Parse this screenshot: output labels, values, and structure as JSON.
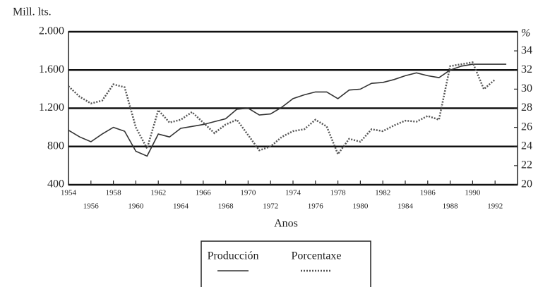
{
  "chart_data": {
    "type": "line",
    "y_label": "Mill. lts.",
    "y2_label": "%",
    "x_label": "Anos",
    "x": [
      1954,
      1955,
      1956,
      1957,
      1958,
      1959,
      1960,
      1961,
      1962,
      1963,
      1964,
      1965,
      1966,
      1967,
      1968,
      1969,
      1970,
      1971,
      1972,
      1973,
      1974,
      1975,
      1976,
      1977,
      1978,
      1979,
      1980,
      1981,
      1982,
      1983,
      1984,
      1985,
      1986,
      1987,
      1988,
      1989,
      1990,
      1991,
      1992,
      1993
    ],
    "xlim": [
      1954,
      1994
    ],
    "xticks": [
      1954,
      1956,
      1958,
      1960,
      1962,
      1964,
      1966,
      1968,
      1970,
      1972,
      1974,
      1976,
      1978,
      1980,
      1982,
      1984,
      1986,
      1988,
      1990,
      1992
    ],
    "ylim": [
      400,
      2000
    ],
    "yticks": [
      400,
      800,
      {
        "value": 1200,
        "label": "1.200"
      },
      {
        "value": 1600,
        "label": "1.600"
      },
      {
        "value": 2000,
        "label": "2.000"
      }
    ],
    "y2lim": [
      20,
      36
    ],
    "y2ticks": [
      20,
      22,
      24,
      26,
      28,
      30,
      32,
      34
    ],
    "grid": true,
    "legend": "bottom",
    "series": [
      {
        "name": "Producción",
        "color": "#333333",
        "style": "solid",
        "values": [
          970,
          900,
          850,
          930,
          1000,
          960,
          750,
          700,
          930,
          900,
          990,
          1010,
          1030,
          1060,
          1090,
          1190,
          1200,
          1130,
          1140,
          1210,
          1300,
          1340,
          1370,
          1370,
          1300,
          1390,
          1400,
          1460,
          1470,
          1500,
          1540,
          1570,
          1540,
          1520,
          1600,
          1640,
          1660,
          1660,
          1660,
          1660
        ]
      },
      {
        "name": "Porcentaxe",
        "color": "#555555",
        "style": "dotted",
        "axis": "y2",
        "values": [
          30.3,
          29.2,
          28.5,
          28.8,
          30.5,
          30.2,
          26,
          23.8,
          27.8,
          26.5,
          26.8,
          27.6,
          26.5,
          25.4,
          26.3,
          26.8,
          25.2,
          23.6,
          24,
          25,
          25.6,
          25.8,
          26.8,
          26.1,
          23.2,
          24.8,
          24.5,
          25.8,
          25.6,
          26.2,
          26.7,
          26.6,
          27.2,
          26.8,
          32.4,
          32.6,
          32.8,
          30,
          31,
          null
        ]
      }
    ]
  }
}
